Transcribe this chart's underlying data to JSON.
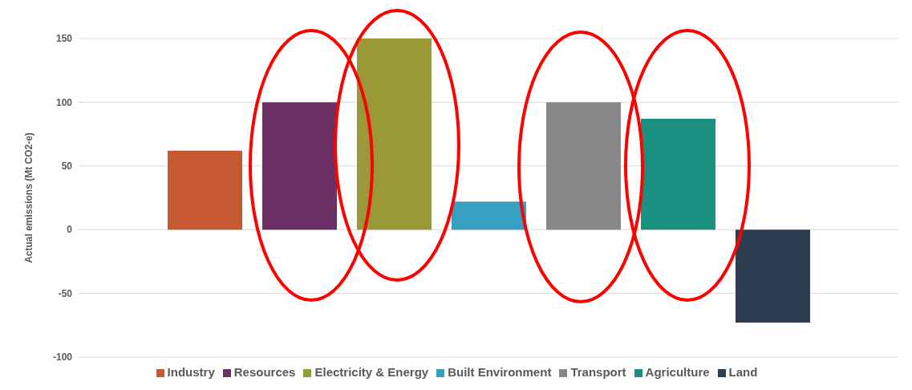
{
  "chart_data": {
    "type": "bar",
    "ylabel": "Actual emissions (Mt CO2-e)",
    "categories": [
      null
    ],
    "series": [
      {
        "name": "Industry",
        "color": "#c55a32",
        "values": [
          62
        ]
      },
      {
        "name": "Resources",
        "color": "#6b2f63",
        "values": [
          100
        ]
      },
      {
        "name": "Electricity & Energy",
        "color": "#9a9837",
        "values": [
          150
        ]
      },
      {
        "name": "Built Environment",
        "color": "#35a0c2",
        "values": [
          22
        ]
      },
      {
        "name": "Transport",
        "color": "#888888",
        "values": [
          100
        ]
      },
      {
        "name": "Agriculture",
        "color": "#1c9080",
        "values": [
          87
        ]
      },
      {
        "name": "Land",
        "color": "#2d3e50",
        "values": [
          -73
        ]
      }
    ],
    "ylim": [
      -100,
      150
    ],
    "yticks": [
      -100,
      -50,
      0,
      50,
      100,
      150
    ],
    "grid": "y",
    "legend": "bottom"
  }
}
